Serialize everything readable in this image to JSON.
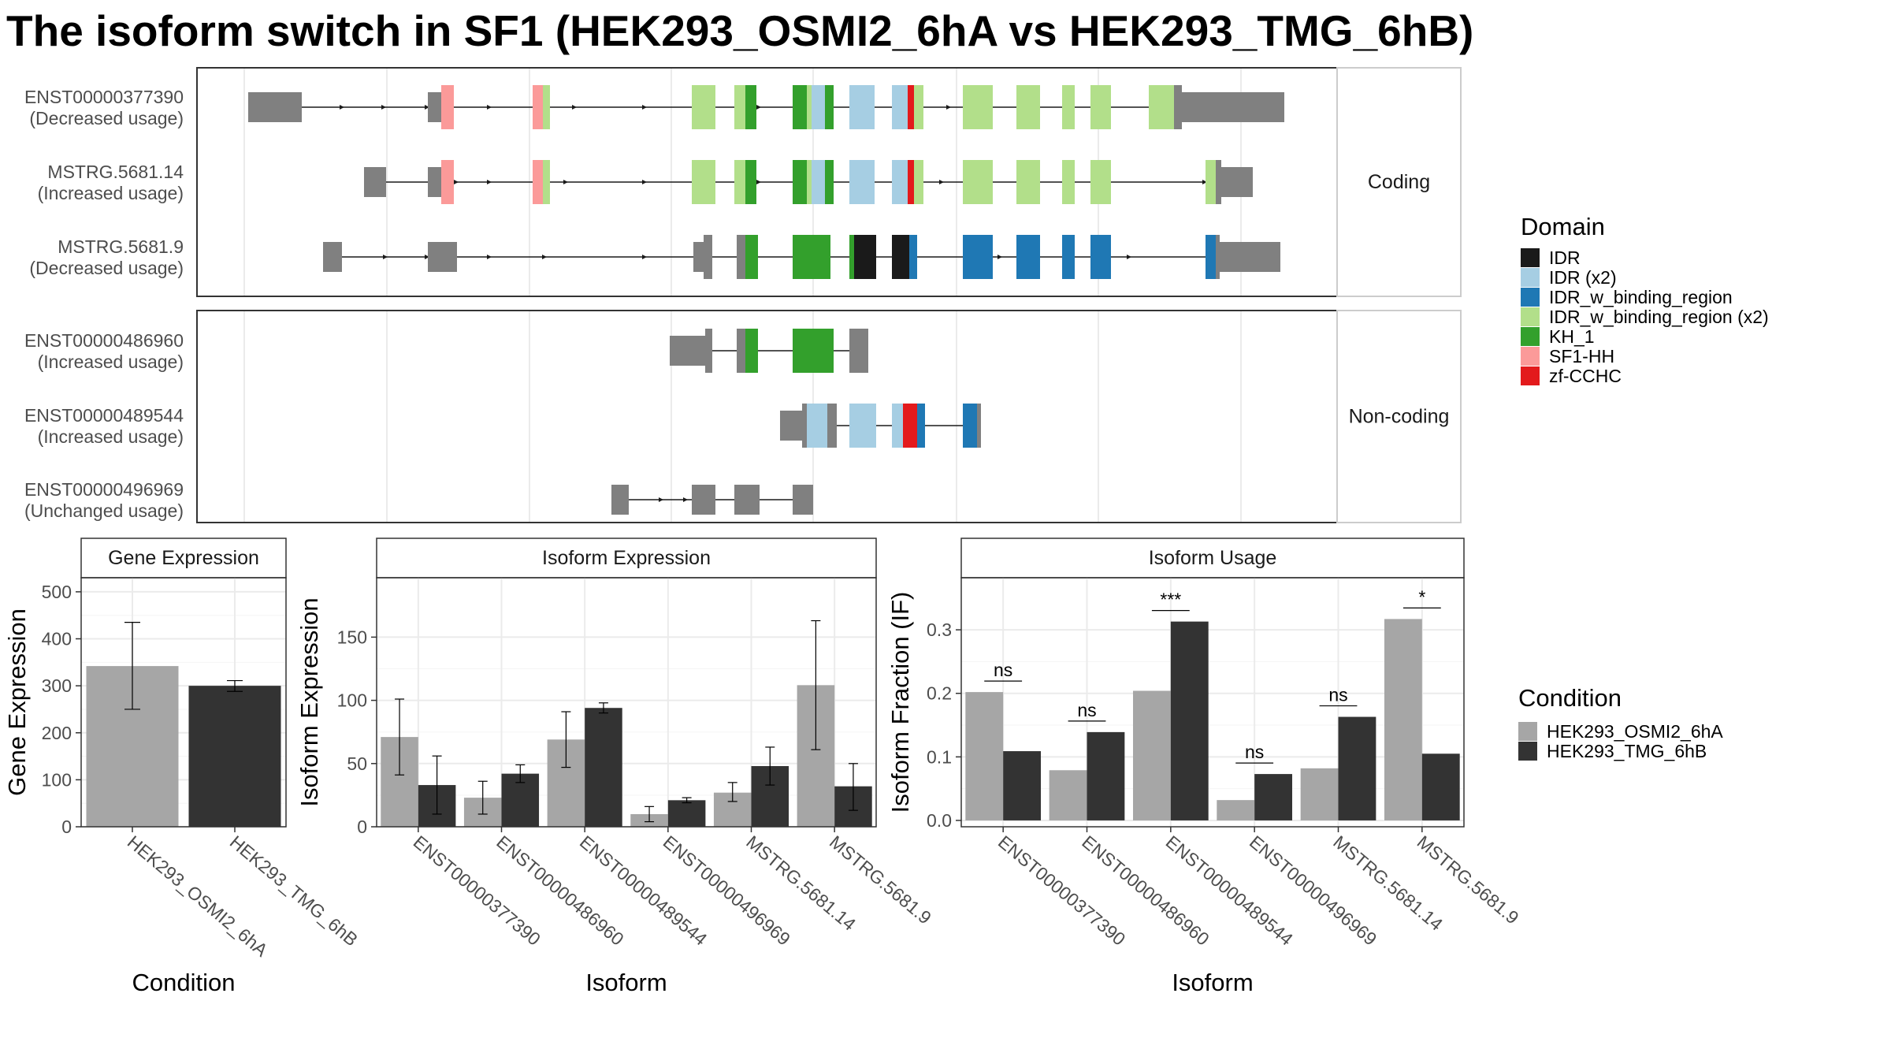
{
  "title": "The isoform switch in SF1 (HEK293_OSMI2_6hA vs HEK293_TMG_6hB)",
  "colors": {
    "exon_plain": "#808080",
    "condition_a": "#a6a6a6",
    "condition_b": "#333333",
    "panel_border": "#333333",
    "grid": "#ebebeb"
  },
  "domain_legend": {
    "title": "Domain",
    "items": [
      {
        "label": "IDR",
        "color": "#1a1a1a"
      },
      {
        "label": "IDR (x2)",
        "color": "#a6cee3"
      },
      {
        "label": "IDR_w_binding_region",
        "color": "#1f78b4"
      },
      {
        "label": "IDR_w_binding_region (x2)",
        "color": "#b2df8a"
      },
      {
        "label": "KH_1",
        "color": "#33a02c"
      },
      {
        "label": "SF1-HH",
        "color": "#fb9a99"
      },
      {
        "label": "zf-CCHC",
        "color": "#e31a1c"
      }
    ]
  },
  "condition_legend": {
    "title": "Condition",
    "items": [
      {
        "label": "HEK293_OSMI2_6hA",
        "color": "#a6a6a6"
      },
      {
        "label": "HEK293_TMG_6hB",
        "color": "#333333"
      }
    ]
  },
  "structure": {
    "coding_strip": "Coding",
    "noncoding_strip": "Non-coding",
    "coding": [
      {
        "name": "ENST00000377390",
        "usage": "(Decreased usage)"
      },
      {
        "name": "MSTRG.5681.14",
        "usage": "(Increased usage)"
      },
      {
        "name": "MSTRG.5681.9",
        "usage": "(Decreased usage)"
      }
    ],
    "noncoding": [
      {
        "name": "ENST00000486960",
        "usage": "(Increased usage)"
      },
      {
        "name": "ENST00000489544",
        "usage": "(Increased usage)"
      },
      {
        "name": "ENST00000496969",
        "usage": "(Unchanged usage)"
      }
    ]
  },
  "chart_data": [
    {
      "type": "bar",
      "title": "Gene Expression",
      "xlabel": "Condition",
      "ylabel": "Gene Expression",
      "categories": [
        "HEK293_OSMI2_6hA",
        "HEK293_TMG_6hB"
      ],
      "values": [
        342,
        300
      ],
      "error_low": [
        250,
        288
      ],
      "error_high": [
        435,
        311
      ],
      "ylim": [
        0,
        530
      ],
      "yticks": [
        0,
        100,
        200,
        300,
        400,
        500
      ]
    },
    {
      "type": "bar",
      "title": "Isoform Expression",
      "xlabel": "Isoform",
      "ylabel": "Isoform Expression",
      "categories": [
        "ENST00000377390",
        "ENST00000486960",
        "ENST00000489544",
        "ENST00000496969",
        "MSTRG.5681.14",
        "MSTRG.5681.9"
      ],
      "series": [
        {
          "name": "HEK293_OSMI2_6hA",
          "values": [
            71,
            23,
            69,
            10,
            27,
            112
          ],
          "error_low": [
            41,
            10,
            47,
            4,
            20,
            61
          ],
          "error_high": [
            101,
            36,
            91,
            16,
            35,
            163
          ]
        },
        {
          "name": "HEK293_TMG_6hB",
          "values": [
            33,
            42,
            94,
            21,
            48,
            32
          ],
          "error_low": [
            10,
            35,
            90,
            19,
            33,
            13
          ],
          "error_high": [
            56,
            49,
            98,
            23,
            63,
            50
          ]
        }
      ],
      "ylim": [
        0,
        197
      ],
      "yticks": [
        0,
        50,
        100,
        150
      ]
    },
    {
      "type": "bar",
      "title": "Isoform Usage",
      "xlabel": "Isoform",
      "ylabel": "Isoform Fraction (IF)",
      "categories": [
        "ENST00000377390",
        "ENST00000486960",
        "ENST00000489544",
        "ENST00000496969",
        "MSTRG.5681.14",
        "MSTRG.5681.9"
      ],
      "series": [
        {
          "name": "HEK293_OSMI2_6hA",
          "values": [
            0.202,
            0.079,
            0.204,
            0.032,
            0.082,
            0.317
          ]
        },
        {
          "name": "HEK293_TMG_6hB",
          "values": [
            0.109,
            0.139,
            0.313,
            0.073,
            0.163,
            0.105
          ]
        }
      ],
      "significance": [
        "ns",
        "ns",
        "***",
        "ns",
        "ns",
        "*"
      ],
      "ylim": [
        -0.01,
        0.382
      ],
      "yticks": [
        0.0,
        0.1,
        0.2,
        0.3
      ],
      "ytick_labels": [
        "0.0",
        "0.1",
        "0.2",
        "0.3"
      ]
    }
  ]
}
